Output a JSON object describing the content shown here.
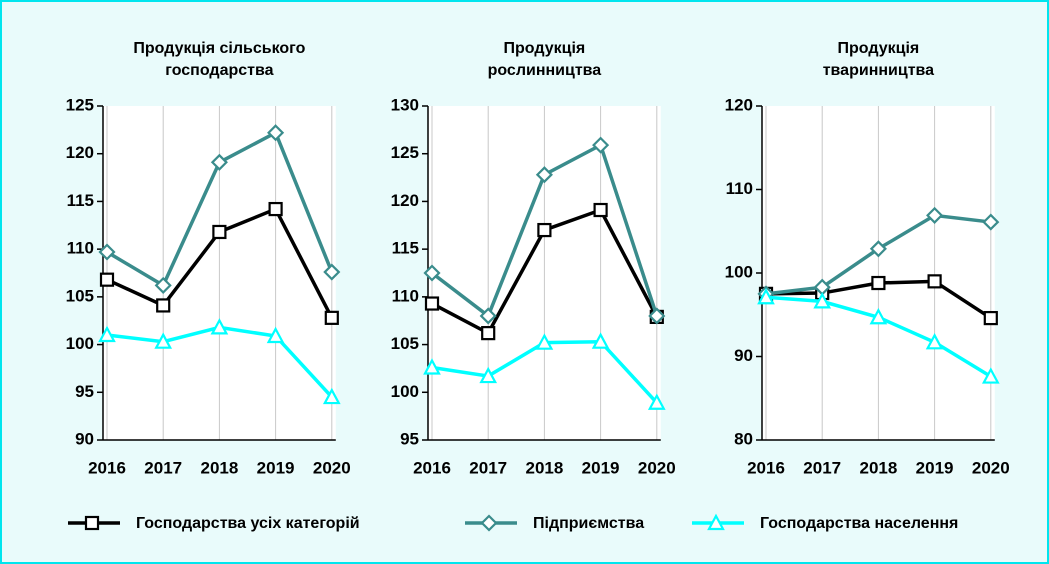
{
  "chart_data": [
    {
      "type": "line",
      "title": "Продукція сільського господарства",
      "categories": [
        "2016",
        "2017",
        "2018",
        "2019",
        "2020"
      ],
      "ylim": [
        90,
        125
      ],
      "yticks": [
        90,
        95,
        100,
        105,
        110,
        115,
        120,
        125
      ],
      "grid": true,
      "series": [
        {
          "name": "Господарства усіх категорій",
          "color": "#000000",
          "marker": "square",
          "values": [
            106.8,
            104.1,
            111.8,
            114.2,
            102.8
          ]
        },
        {
          "name": "Підприємства",
          "color": "#3a8c8c",
          "marker": "diamond",
          "values": [
            109.7,
            106.2,
            119.1,
            122.2,
            107.6
          ]
        },
        {
          "name": "Господарства населення",
          "color": "#00ffff",
          "marker": "triangle",
          "values": [
            101.0,
            100.3,
            101.8,
            100.9,
            94.5
          ]
        }
      ]
    },
    {
      "type": "line",
      "title": "Продукція рослинництва",
      "categories": [
        "2016",
        "2017",
        "2018",
        "2019",
        "2020"
      ],
      "ylim": [
        95,
        130
      ],
      "yticks": [
        95,
        100,
        105,
        110,
        115,
        120,
        125,
        130
      ],
      "grid": true,
      "series": [
        {
          "name": "Господарства усіх категорій",
          "color": "#000000",
          "marker": "square",
          "values": [
            109.3,
            106.2,
            117.0,
            119.1,
            107.9
          ]
        },
        {
          "name": "Підприємства",
          "color": "#3a8c8c",
          "marker": "diamond",
          "values": [
            112.5,
            108.0,
            122.8,
            125.9,
            108.0
          ]
        },
        {
          "name": "Господарства населення",
          "color": "#00ffff",
          "marker": "triangle",
          "values": [
            102.6,
            101.7,
            105.2,
            105.3,
            98.9
          ]
        }
      ]
    },
    {
      "type": "line",
      "title": "Продукція тваринництва",
      "categories": [
        "2016",
        "2017",
        "2018",
        "2019",
        "2020"
      ],
      "ylim": [
        80,
        120
      ],
      "yticks": [
        80,
        90,
        100,
        110,
        120
      ],
      "grid": true,
      "series": [
        {
          "name": "Господарства усіх категорій",
          "color": "#000000",
          "marker": "square",
          "values": [
            97.5,
            97.6,
            98.8,
            99.0,
            94.6
          ]
        },
        {
          "name": "Підприємства",
          "color": "#3a8c8c",
          "marker": "diamond",
          "values": [
            97.5,
            98.3,
            102.9,
            106.9,
            106.1
          ]
        },
        {
          "name": "Господарства населення",
          "color": "#00ffff",
          "marker": "triangle",
          "values": [
            97.1,
            96.6,
            94.7,
            91.7,
            87.6
          ]
        }
      ]
    }
  ]
}
